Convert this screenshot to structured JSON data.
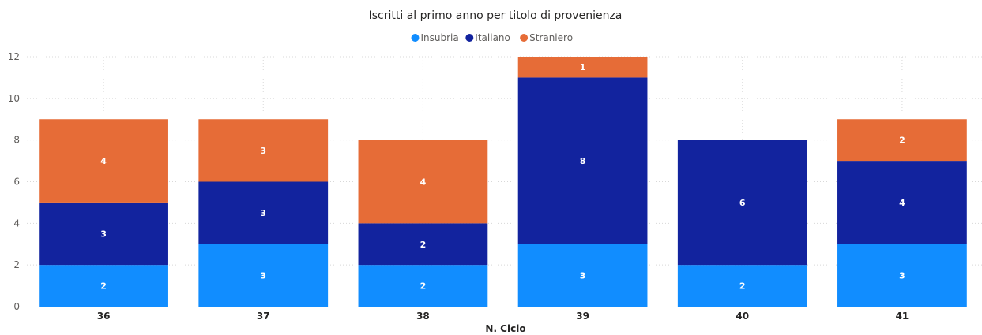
{
  "chart_data": {
    "type": "bar",
    "stacked": true,
    "title": "Iscritti al primo anno per titolo di provenienza",
    "xlabel": "N. Ciclo",
    "ylabel": "",
    "categories": [
      "36",
      "37",
      "38",
      "39",
      "40",
      "41"
    ],
    "series": [
      {
        "name": "Insubria",
        "color": "#118dff",
        "values": [
          2,
          3,
          2,
          3,
          2,
          3
        ]
      },
      {
        "name": "Italiano",
        "color": "#12239e",
        "values": [
          3,
          3,
          2,
          8,
          6,
          4
        ]
      },
      {
        "name": "Straniero",
        "color": "#e66c37",
        "values": [
          4,
          3,
          4,
          1,
          0,
          2
        ]
      }
    ],
    "ylim": [
      0,
      12
    ],
    "yticks": [
      0,
      2,
      4,
      6,
      8,
      10,
      12
    ],
    "grid": true,
    "legend_position": "top-center"
  }
}
